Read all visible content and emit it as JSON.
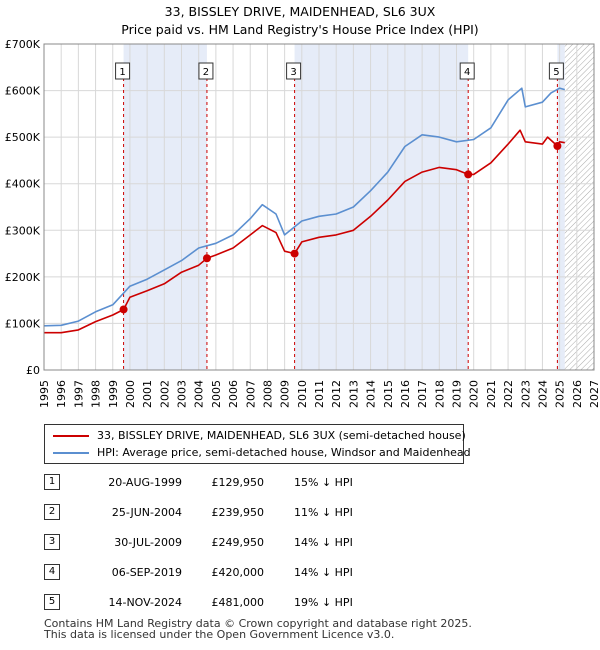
{
  "title": "33, BISSLEY DRIVE, MAIDENHEAD, SL6 3UX",
  "subtitle": "Price paid vs. HM Land Registry's House Price Index (HPI)",
  "legend": [
    {
      "label": "33, BISSLEY DRIVE, MAIDENHEAD, SL6 3UX (semi-detached house)",
      "color": "#cc0000"
    },
    {
      "label": "HPI: Average price, semi-detached house, Windsor and Maidenhead",
      "color": "#5b8fd0"
    }
  ],
  "transactions": [
    {
      "num": "1",
      "date": "20-AUG-1999",
      "price": "£129,950",
      "hpi": "15% ↓ HPI"
    },
    {
      "num": "2",
      "date": "25-JUN-2004",
      "price": "£239,950",
      "hpi": "11% ↓ HPI"
    },
    {
      "num": "3",
      "date": "30-JUL-2009",
      "price": "£249,950",
      "hpi": "14% ↓ HPI"
    },
    {
      "num": "4",
      "date": "06-SEP-2019",
      "price": "£420,000",
      "hpi": "14% ↓ HPI"
    },
    {
      "num": "5",
      "date": "14-NOV-2024",
      "price": "£481,000",
      "hpi": "19% ↓ HPI"
    }
  ],
  "footer": {
    "line1": "Contains HM Land Registry data © Crown copyright and database right 2025.",
    "line2": "This data is licensed under the Open Government Licence v3.0."
  },
  "chart_data": {
    "type": "line",
    "title": "33, BISSLEY DRIVE, MAIDENHEAD, SL6 3UX",
    "subtitle": "Price paid vs. HM Land Registry's House Price Index (HPI)",
    "xlabel": "",
    "ylabel": "",
    "xlim": [
      1995,
      2027
    ],
    "ylim": [
      0,
      700000
    ],
    "x_ticks": [
      1995,
      1996,
      1997,
      1998,
      1999,
      2000,
      2001,
      2002,
      2003,
      2004,
      2005,
      2006,
      2007,
      2008,
      2009,
      2010,
      2011,
      2012,
      2013,
      2014,
      2015,
      2016,
      2017,
      2018,
      2019,
      2020,
      2021,
      2022,
      2023,
      2024,
      2025,
      2026,
      2027
    ],
    "y_ticks": [
      0,
      100000,
      200000,
      300000,
      400000,
      500000,
      600000,
      700000
    ],
    "y_tick_labels": [
      "£0",
      "£100K",
      "£200K",
      "£300K",
      "£400K",
      "£500K",
      "£600K",
      "£700K"
    ],
    "grid": true,
    "shaded_periods": [
      [
        1999.63,
        2004.48
      ],
      [
        2009.58,
        2019.68
      ],
      [
        2024.87,
        2025.3
      ]
    ],
    "hatched_region": [
      2025.3,
      2027
    ],
    "series": [
      {
        "name": "33, BISSLEY DRIVE, MAIDENHEAD, SL6 3UX (semi-detached house)",
        "color": "#cc0000",
        "points": [
          [
            1995,
            80000
          ],
          [
            1996,
            80000
          ],
          [
            1997,
            86000
          ],
          [
            1998,
            104000
          ],
          [
            1999,
            118000
          ],
          [
            1999.63,
            129950
          ],
          [
            2000,
            156000
          ],
          [
            2001,
            170000
          ],
          [
            2002,
            185000
          ],
          [
            2003,
            210000
          ],
          [
            2004,
            225000
          ],
          [
            2004.48,
            239950
          ],
          [
            2005,
            247000
          ],
          [
            2006,
            262000
          ],
          [
            2007,
            290000
          ],
          [
            2007.7,
            310000
          ],
          [
            2008.5,
            295000
          ],
          [
            2009,
            255000
          ],
          [
            2009.58,
            249950
          ],
          [
            2010,
            275000
          ],
          [
            2011,
            285000
          ],
          [
            2012,
            290000
          ],
          [
            2013,
            300000
          ],
          [
            2014,
            330000
          ],
          [
            2015,
            365000
          ],
          [
            2016,
            405000
          ],
          [
            2017,
            425000
          ],
          [
            2018,
            435000
          ],
          [
            2019,
            430000
          ],
          [
            2019.68,
            420000
          ],
          [
            2020,
            420000
          ],
          [
            2021,
            445000
          ],
          [
            2022,
            485000
          ],
          [
            2022.7,
            515000
          ],
          [
            2023,
            490000
          ],
          [
            2024,
            485000
          ],
          [
            2024.3,
            500000
          ],
          [
            2024.87,
            481000
          ],
          [
            2025,
            490000
          ],
          [
            2025.3,
            488000
          ]
        ]
      },
      {
        "name": "HPI: Average price, semi-detached house, Windsor and Maidenhead",
        "color": "#5b8fd0",
        "points": [
          [
            1995,
            95000
          ],
          [
            1996,
            96000
          ],
          [
            1997,
            105000
          ],
          [
            1998,
            125000
          ],
          [
            1999,
            140000
          ],
          [
            2000,
            180000
          ],
          [
            2001,
            195000
          ],
          [
            2002,
            215000
          ],
          [
            2003,
            235000
          ],
          [
            2004,
            262000
          ],
          [
            2005,
            272000
          ],
          [
            2006,
            290000
          ],
          [
            2007,
            325000
          ],
          [
            2007.7,
            355000
          ],
          [
            2008.5,
            335000
          ],
          [
            2009,
            290000
          ],
          [
            2010,
            320000
          ],
          [
            2011,
            330000
          ],
          [
            2012,
            335000
          ],
          [
            2013,
            350000
          ],
          [
            2014,
            385000
          ],
          [
            2015,
            425000
          ],
          [
            2016,
            480000
          ],
          [
            2017,
            505000
          ],
          [
            2018,
            500000
          ],
          [
            2019,
            490000
          ],
          [
            2020,
            495000
          ],
          [
            2021,
            520000
          ],
          [
            2022,
            580000
          ],
          [
            2022.8,
            605000
          ],
          [
            2023,
            565000
          ],
          [
            2024,
            575000
          ],
          [
            2024.5,
            595000
          ],
          [
            2025,
            605000
          ],
          [
            2025.3,
            602000
          ]
        ]
      }
    ],
    "markers": [
      {
        "label": "1",
        "x": 1999.63,
        "y": 129950
      },
      {
        "label": "2",
        "x": 2004.48,
        "y": 239950
      },
      {
        "label": "3",
        "x": 2009.58,
        "y": 249950
      },
      {
        "label": "4",
        "x": 2019.68,
        "y": 420000
      },
      {
        "label": "5",
        "x": 2024.87,
        "y": 481000
      }
    ]
  }
}
